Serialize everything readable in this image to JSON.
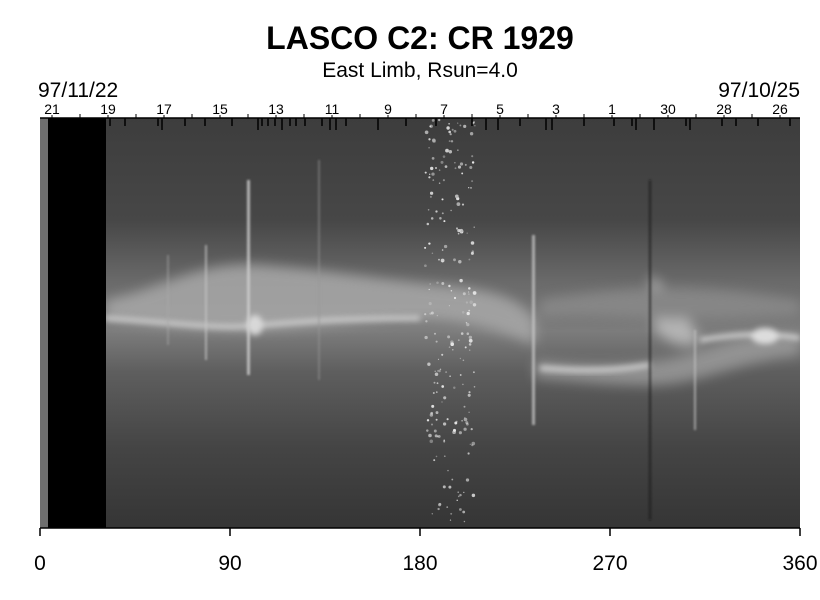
{
  "chart_data": {
    "type": "heatmap",
    "title": "LASCO C2: CR 1929",
    "subtitle": "East Limb, Rsun=4.0",
    "date_left": "97/11/22",
    "date_right": "97/10/25",
    "x_ticks": [
      0,
      90,
      180,
      270,
      360
    ],
    "xlim": [
      0,
      360
    ],
    "top_day_labels": [
      "21",
      "19",
      "17",
      "15",
      "13",
      "11",
      "9",
      "7",
      "5",
      "3",
      "1",
      "30",
      "28",
      "26"
    ],
    "colormap": "grayscale",
    "grid": false
  }
}
